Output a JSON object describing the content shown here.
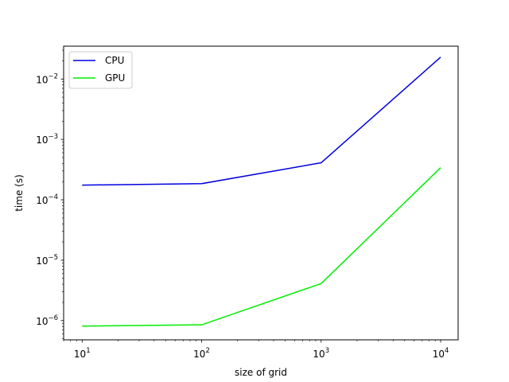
{
  "chart_data": {
    "type": "line",
    "title": "",
    "xlabel": "size of grid",
    "ylabel": "time (s)",
    "xscale": "log",
    "yscale": "log",
    "xlim": [
      7,
      14000
    ],
    "ylim": [
      4.8e-07,
      0.035
    ],
    "grid": false,
    "legend_position": "top-left",
    "x": [
      10,
      100,
      1000,
      10000
    ],
    "x_ticks": [
      {
        "value": 10,
        "base": "10",
        "exp": "1"
      },
      {
        "value": 100,
        "base": "10",
        "exp": "2"
      },
      {
        "value": 1000,
        "base": "10",
        "exp": "3"
      },
      {
        "value": 10000,
        "base": "10",
        "exp": "4"
      }
    ],
    "y_ticks": [
      {
        "value": 1e-06,
        "base": "10",
        "exp": "−6"
      },
      {
        "value": 1e-05,
        "base": "10",
        "exp": "−5"
      },
      {
        "value": 0.0001,
        "base": "10",
        "exp": "−4"
      },
      {
        "value": 0.001,
        "base": "10",
        "exp": "−3"
      },
      {
        "value": 0.01,
        "base": "10",
        "exp": "−2"
      }
    ],
    "series": [
      {
        "name": "CPU",
        "color": "#0000e0",
        "values": [
          0.000175,
          0.000185,
          0.00041,
          0.023
        ]
      },
      {
        "name": "GPU",
        "color": "#00ee00",
        "values": [
          8.1e-07,
          8.5e-07,
          4.1e-06,
          0.00034
        ]
      }
    ]
  }
}
